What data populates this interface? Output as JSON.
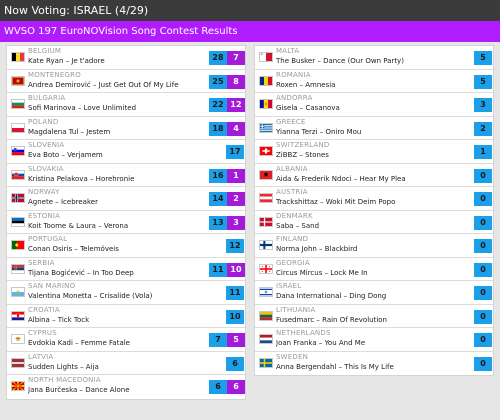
{
  "header": {
    "now_voting": "Now Voting: ISRAEL (4/29)"
  },
  "title_bar": {
    "title": "WVSO 197 EuroNOVision Song Contest Results"
  },
  "colors": {
    "accent": "#b11cff",
    "total_badge": "#1a9fe8",
    "points_badge": "#a31bd9"
  },
  "left": [
    {
      "country": "BELGIUM",
      "entry": "Kate Ryan – Je t'adore",
      "total": "28",
      "points": "7",
      "flag": "flag-belgium"
    },
    {
      "country": "MONTENEGRO",
      "entry": "Andrea Demirović – Just Get Out Of My Life",
      "total": "25",
      "points": "8",
      "flag": "flag-montenegro"
    },
    {
      "country": "BULGARIA",
      "entry": "Sofi Marinova – Love Unlimited",
      "total": "22",
      "points": "12",
      "flag": "flag-bulgaria"
    },
    {
      "country": "POLAND",
      "entry": "Magdalena Tul – Jestem",
      "total": "18",
      "points": "4",
      "flag": "flag-poland"
    },
    {
      "country": "SLOVENIA",
      "entry": "Eva Boto – Verjamem",
      "total": "17",
      "points": null,
      "flag": "flag-slovenia"
    },
    {
      "country": "SLOVAKIA",
      "entry": "Kristina Pelakova – Horehronie",
      "total": "16",
      "points": "1",
      "flag": "flag-slovakia"
    },
    {
      "country": "NORWAY",
      "entry": "Agnete – Icebreaker",
      "total": "14",
      "points": "2",
      "flag": "flag-norway"
    },
    {
      "country": "ESTONIA",
      "entry": "Koit Toome & Laura – Verona",
      "total": "13",
      "points": "3",
      "flag": "flag-estonia"
    },
    {
      "country": "PORTUGAL",
      "entry": "Conan Osiris – Telemóveis",
      "total": "12",
      "points": null,
      "flag": "flag-portugal"
    },
    {
      "country": "SERBIA",
      "entry": "Tijana Bogićević – In Too Deep",
      "total": "11",
      "points": "10",
      "flag": "flag-serbia"
    },
    {
      "country": "SAN MARINO",
      "entry": "Valentina Monetta – Crisalide (Vola)",
      "total": "11",
      "points": null,
      "flag": "flag-san-marino"
    },
    {
      "country": "CROATIA",
      "entry": "Albina – Tick Tock",
      "total": "10",
      "points": null,
      "flag": "flag-croatia"
    },
    {
      "country": "CYPRUS",
      "entry": "Evdokia Kadi – Femme Fatale",
      "total": "7",
      "points": "5",
      "flag": "flag-cyprus"
    },
    {
      "country": "LATVIA",
      "entry": "Sudden Lights – Aija",
      "total": "6",
      "points": null,
      "flag": "flag-latvia"
    },
    {
      "country": "NORTH MACEDONIA",
      "entry": "Jana Burčeska – Dance Alone",
      "total": "6",
      "points": "6",
      "flag": "flag-north-macedonia"
    }
  ],
  "right": [
    {
      "country": "MALTA",
      "entry": "The Busker – Dance (Our Own Party)",
      "total": "5",
      "points": null,
      "flag": "flag-malta"
    },
    {
      "country": "ROMANIA",
      "entry": "Roxen – Amnesia",
      "total": "5",
      "points": null,
      "flag": "flag-romania"
    },
    {
      "country": "ANDORRA",
      "entry": "Gisela – Casanova",
      "total": "3",
      "points": null,
      "flag": "flag-andorra"
    },
    {
      "country": "GREECE",
      "entry": "Yianna Terzi – Oniro Mou",
      "total": "2",
      "points": null,
      "flag": "flag-greece"
    },
    {
      "country": "SWITZERLAND",
      "entry": "ZiBBZ – Stones",
      "total": "1",
      "points": null,
      "flag": "flag-switzerland"
    },
    {
      "country": "ALBANIA",
      "entry": "Aida & Frederik Ndoci – Hear My Plea",
      "total": "0",
      "points": null,
      "flag": "flag-albania"
    },
    {
      "country": "AUSTRIA",
      "entry": "Trackshittaz – Woki Mit Deim Popo",
      "total": "0",
      "points": null,
      "flag": "flag-austria"
    },
    {
      "country": "DENMARK",
      "entry": "Saba – Sand",
      "total": "0",
      "points": null,
      "flag": "flag-denmark"
    },
    {
      "country": "FINLAND",
      "entry": "Norma John – Blackbird",
      "total": "0",
      "points": null,
      "flag": "flag-finland"
    },
    {
      "country": "GEORGIA",
      "entry": "Circus Mircus – Lock Me In",
      "total": "0",
      "points": null,
      "flag": "flag-georgia"
    },
    {
      "country": "ISRAEL",
      "entry": "Dana International – Ding Dong",
      "total": "0",
      "points": null,
      "flag": "flag-israel"
    },
    {
      "country": "LITHUANIA",
      "entry": "Fusedmarc – Rain Of Revolution",
      "total": "0",
      "points": null,
      "flag": "flag-lithuania"
    },
    {
      "country": "NETHERLANDS",
      "entry": "Joan Franka – You And Me",
      "total": "0",
      "points": null,
      "flag": "flag-netherlands"
    },
    {
      "country": "SWEDEN",
      "entry": "Anna Bergendahl – This Is My Life",
      "total": "0",
      "points": null,
      "flag": "flag-sweden"
    }
  ]
}
